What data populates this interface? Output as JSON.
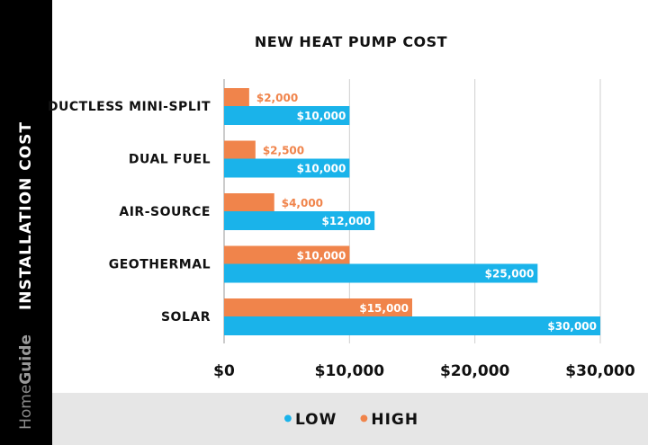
{
  "sidebar": {
    "axis_title": "INSTALLATION COST",
    "brand_home": "Home",
    "brand_guide": "Guide"
  },
  "colors": {
    "low": "#1ab3ea",
    "high": "#f0844b",
    "grid": "#cfcfcf"
  },
  "chart_data": {
    "type": "bar",
    "orientation": "horizontal",
    "title": "NEW HEAT PUMP COST",
    "categories": [
      "DUCTLESS MINI-SPLIT",
      "DUAL FUEL",
      "AIR-SOURCE",
      "GEOTHERMAL",
      "SOLAR"
    ],
    "series": [
      {
        "name": "LOW",
        "values": [
          10000,
          10000,
          12000,
          25000,
          30000
        ],
        "labels": [
          "$10,000",
          "$10,000",
          "$12,000",
          "$25,000",
          "$30,000"
        ]
      },
      {
        "name": "HIGH",
        "values": [
          2000,
          2500,
          4000,
          10000,
          15000
        ],
        "labels": [
          "$2,000",
          "$2,500",
          "$4,000",
          "$10,000",
          "$15,000"
        ]
      }
    ],
    "xlim": [
      0,
      30000
    ],
    "ticks": [
      0,
      10000,
      20000,
      30000
    ],
    "tick_labels": [
      "$0",
      "$10,000",
      "$20,000",
      "$30,000"
    ],
    "grid": true,
    "legend_position": "bottom"
  }
}
